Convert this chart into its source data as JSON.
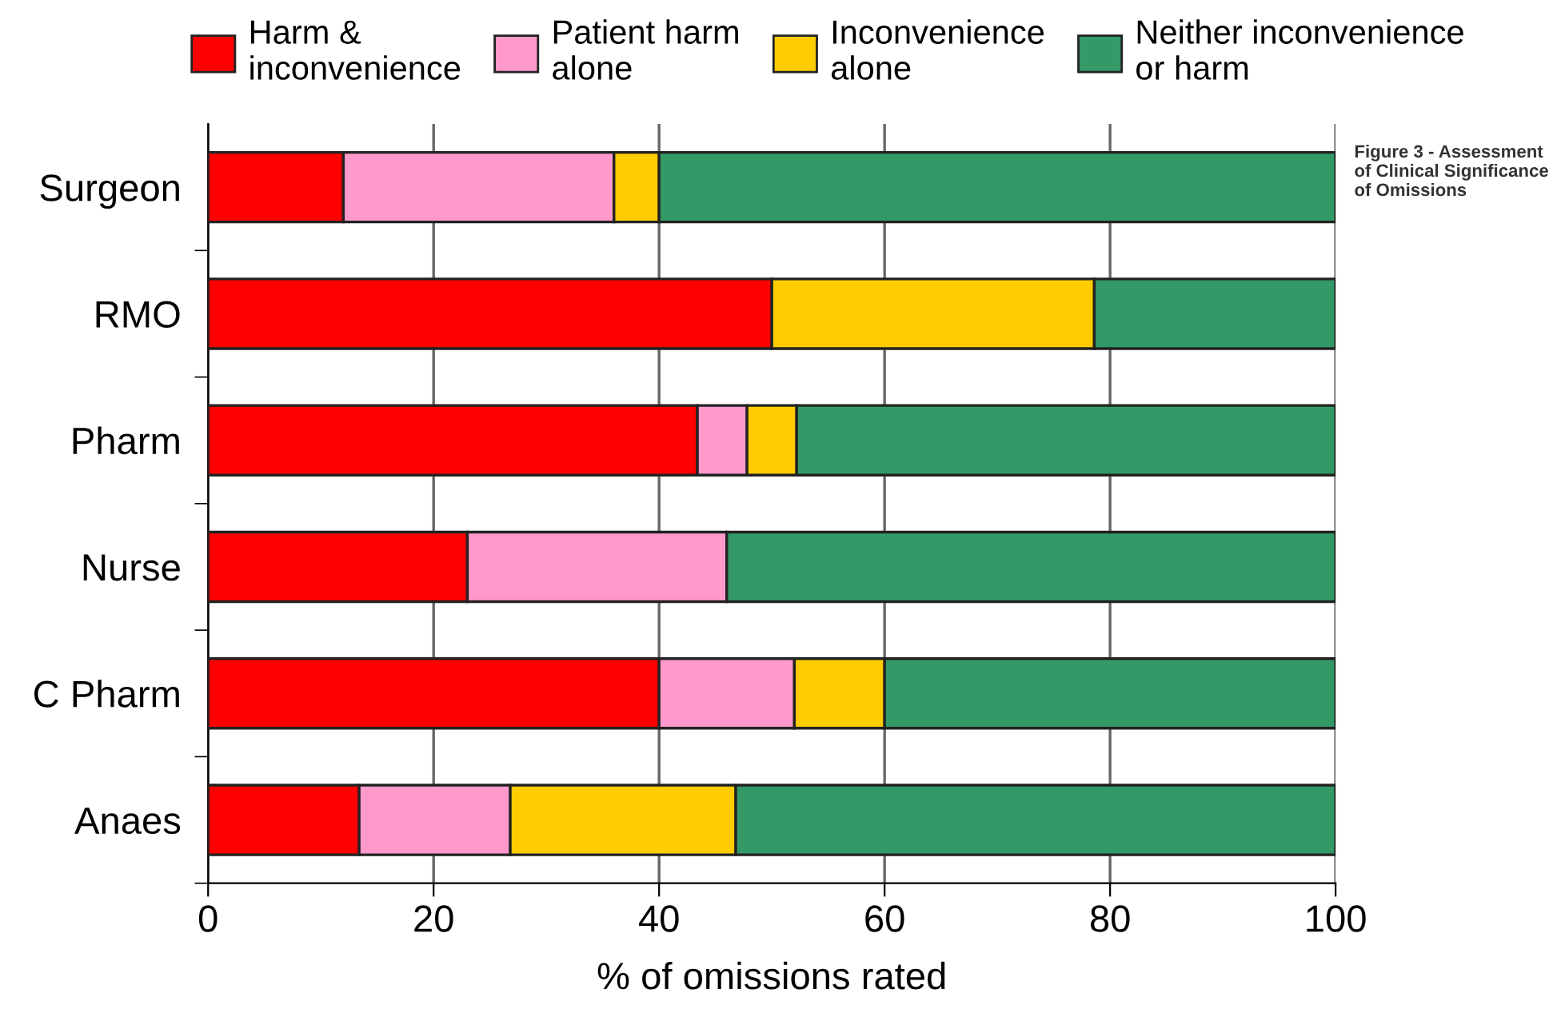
{
  "chart_data": {
    "type": "bar",
    "orientation": "horizontal",
    "stacked": true,
    "categories": [
      "Surgeon",
      "RMO",
      "Pharm",
      "Nurse",
      "C Pharm",
      "Anaes"
    ],
    "series": [
      {
        "name": "Harm & inconvenience",
        "color": "#ff0000",
        "values": [
          12,
          50,
          43.4,
          23,
          40,
          13.4
        ]
      },
      {
        "name": "Patient harm alone",
        "color": "#ff99cc",
        "values": [
          24,
          null,
          4.4,
          23,
          12,
          13.4
        ]
      },
      {
        "name": "Inconvenience alone",
        "color": "#ffcc00",
        "values": [
          4,
          28.6,
          4.4,
          null,
          8,
          20
        ]
      },
      {
        "name": "Neither inconvenience or harm",
        "color": "#339966",
        "values": [
          60,
          21.4,
          47.8,
          54,
          40,
          53.2
        ]
      }
    ],
    "xlabel": "% of omissions rated",
    "xlim": [
      0,
      100
    ],
    "xticks": [
      0,
      20,
      40,
      60,
      80,
      100
    ],
    "grid": "x",
    "legend": "top",
    "annotations": [
      "Figure 3 - Assessment of Clinical Significance of Omissions"
    ]
  }
}
